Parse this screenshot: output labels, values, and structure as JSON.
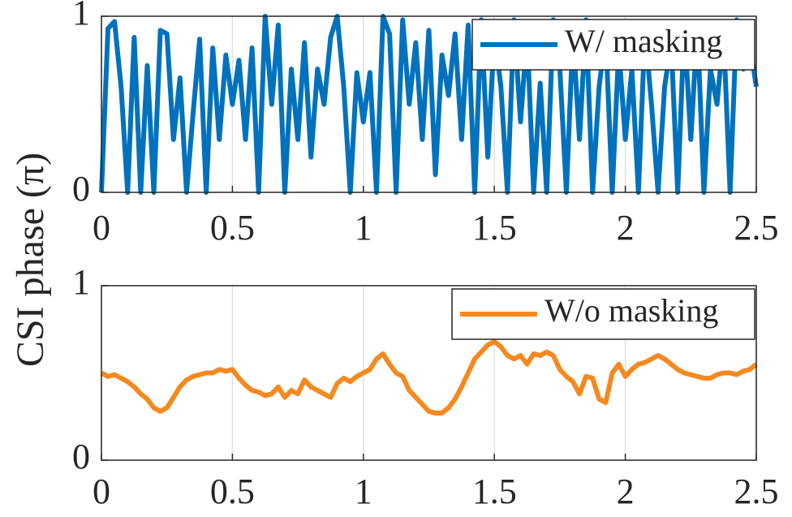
{
  "chart_data": [
    {
      "type": "line",
      "ylabel": "CSI phase (π)",
      "x": [
        0,
        0.025,
        0.05,
        0.075,
        0.1,
        0.125,
        0.15,
        0.175,
        0.2,
        0.225,
        0.25,
        0.275,
        0.3,
        0.325,
        0.35,
        0.375,
        0.4,
        0.425,
        0.45,
        0.475,
        0.5,
        0.525,
        0.55,
        0.575,
        0.6,
        0.625,
        0.65,
        0.675,
        0.7,
        0.725,
        0.75,
        0.775,
        0.8,
        0.825,
        0.85,
        0.875,
        0.9,
        0.925,
        0.95,
        0.975,
        1,
        1.025,
        1.05,
        1.075,
        1.1,
        1.125,
        1.15,
        1.175,
        1.2,
        1.225,
        1.25,
        1.275,
        1.3,
        1.325,
        1.35,
        1.375,
        1.4,
        1.425,
        1.45,
        1.475,
        1.5,
        1.525,
        1.55,
        1.575,
        1.6,
        1.625,
        1.65,
        1.675,
        1.7,
        1.725,
        1.75,
        1.775,
        1.8,
        1.825,
        1.85,
        1.875,
        1.9,
        1.925,
        1.95,
        1.975,
        2,
        2.025,
        2.05,
        2.075,
        2.1,
        2.125,
        2.15,
        2.175,
        2.2,
        2.225,
        2.25,
        2.275,
        2.3,
        2.325,
        2.35,
        2.375,
        2.4,
        2.425,
        2.45,
        2.475,
        2.5
      ],
      "series": [
        {
          "name": "W/ masking",
          "color": "#0072bd",
          "values": [
            0,
            0.93,
            0.97,
            0.6,
            0,
            0.88,
            0,
            0.72,
            0,
            0.92,
            0.9,
            0.3,
            0.65,
            0,
            0.45,
            0.87,
            0,
            0.82,
            0.3,
            0.78,
            0.5,
            0.75,
            0.3,
            0.82,
            0,
            1.0,
            0.5,
            0.95,
            0,
            0.7,
            0.3,
            0.85,
            0.2,
            0.7,
            0.5,
            0.88,
            1.0,
            0.6,
            0,
            0.68,
            0.4,
            0.68,
            0,
            1.0,
            0.9,
            0,
            0.98,
            0.5,
            0.85,
            0.3,
            0.92,
            0.1,
            0.78,
            0.55,
            0.9,
            0.3,
            0.95,
            0,
            0.98,
            0.2,
            0.9,
            0.6,
            0,
            0.98,
            0.4,
            0.9,
            0,
            0.62,
            0,
            0.98,
            0.7,
            0,
            0.9,
            0.3,
            0.98,
            0,
            0.6,
            0.9,
            0,
            0.82,
            0.3,
            0.7,
            0,
            0.92,
            0.5,
            0,
            0.6,
            0.85,
            0,
            0.95,
            0.3,
            0.95,
            0,
            0.7,
            0.5,
            0.9,
            0,
            0.98,
            0.7,
            0.85,
            0.6
          ]
        }
      ],
      "xlim": [
        0,
        2.5
      ],
      "ylim": [
        0,
        1
      ],
      "xticks": [
        0,
        0.5,
        1,
        1.5,
        2,
        2.5
      ],
      "yticks": [
        0,
        1
      ],
      "grid": true,
      "legend": "upper-right"
    },
    {
      "type": "line",
      "x": [
        0,
        0.025,
        0.05,
        0.075,
        0.1,
        0.125,
        0.15,
        0.175,
        0.2,
        0.225,
        0.25,
        0.275,
        0.3,
        0.325,
        0.35,
        0.375,
        0.4,
        0.425,
        0.45,
        0.475,
        0.5,
        0.525,
        0.55,
        0.575,
        0.6,
        0.625,
        0.65,
        0.675,
        0.7,
        0.725,
        0.75,
        0.775,
        0.8,
        0.825,
        0.85,
        0.875,
        0.9,
        0.925,
        0.95,
        0.975,
        1,
        1.025,
        1.05,
        1.075,
        1.1,
        1.125,
        1.15,
        1.175,
        1.2,
        1.225,
        1.25,
        1.275,
        1.3,
        1.325,
        1.35,
        1.375,
        1.4,
        1.425,
        1.45,
        1.475,
        1.5,
        1.525,
        1.55,
        1.575,
        1.6,
        1.625,
        1.65,
        1.675,
        1.7,
        1.725,
        1.75,
        1.775,
        1.8,
        1.825,
        1.85,
        1.875,
        1.9,
        1.925,
        1.95,
        1.975,
        2,
        2.025,
        2.05,
        2.075,
        2.1,
        2.125,
        2.15,
        2.175,
        2.2,
        2.225,
        2.25,
        2.275,
        2.3,
        2.325,
        2.35,
        2.375,
        2.4,
        2.425,
        2.45,
        2.475,
        2.5
      ],
      "series": [
        {
          "name": "W/o masking",
          "color": "#f5891f",
          "values": [
            0.5,
            0.48,
            0.49,
            0.47,
            0.45,
            0.42,
            0.38,
            0.35,
            0.3,
            0.28,
            0.3,
            0.36,
            0.42,
            0.46,
            0.48,
            0.49,
            0.5,
            0.5,
            0.52,
            0.51,
            0.52,
            0.47,
            0.43,
            0.4,
            0.39,
            0.37,
            0.38,
            0.42,
            0.36,
            0.4,
            0.38,
            0.46,
            0.42,
            0.4,
            0.38,
            0.36,
            0.44,
            0.47,
            0.45,
            0.48,
            0.5,
            0.52,
            0.58,
            0.61,
            0.55,
            0.5,
            0.48,
            0.4,
            0.36,
            0.32,
            0.28,
            0.27,
            0.27,
            0.3,
            0.35,
            0.42,
            0.5,
            0.58,
            0.62,
            0.66,
            0.68,
            0.65,
            0.6,
            0.58,
            0.6,
            0.55,
            0.61,
            0.6,
            0.62,
            0.6,
            0.52,
            0.48,
            0.45,
            0.38,
            0.48,
            0.47,
            0.35,
            0.33,
            0.5,
            0.55,
            0.48,
            0.52,
            0.55,
            0.56,
            0.58,
            0.6,
            0.58,
            0.55,
            0.52,
            0.5,
            0.49,
            0.48,
            0.47,
            0.47,
            0.49,
            0.5,
            0.5,
            0.49,
            0.51,
            0.52,
            0.55
          ]
        }
      ],
      "xlim": [
        0,
        2.5
      ],
      "ylim": [
        0,
        1
      ],
      "xticks": [
        0,
        0.5,
        1,
        1.5,
        2,
        2.5
      ],
      "yticks": [
        0,
        1
      ],
      "grid": true,
      "legend": "upper-right"
    }
  ]
}
